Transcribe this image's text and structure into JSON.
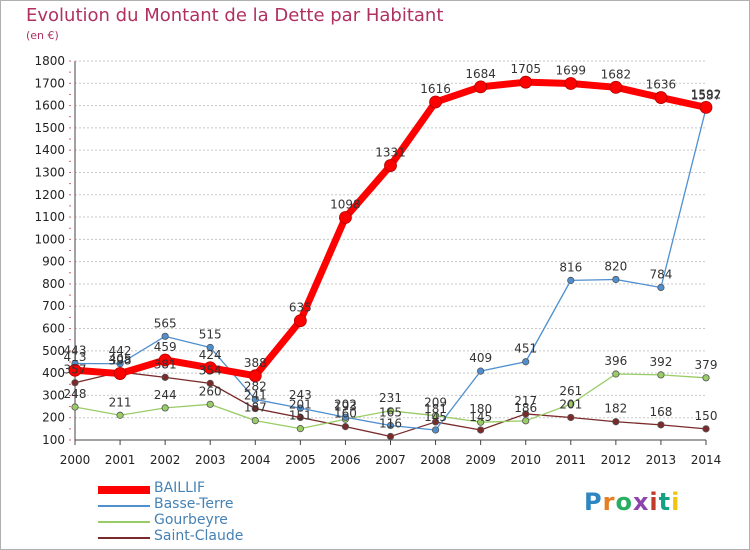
{
  "title": "Evolution du Montant de la Dette par Habitant",
  "subtitle": "(en €)",
  "logo_text": "Proxiti",
  "colors": {
    "title": "#b03060",
    "grid": "#c8c8c8",
    "axis_tick_text": "#222222",
    "legend_text": "#4682b4"
  },
  "chart_data": {
    "type": "line",
    "title": "Evolution du Montant de la Dette par Habitant",
    "subtitle": "(en €)",
    "xlabel": "",
    "ylabel": "",
    "x": [
      2000,
      2001,
      2002,
      2003,
      2004,
      2005,
      2006,
      2007,
      2008,
      2009,
      2010,
      2011,
      2012,
      2013,
      2014
    ],
    "ylim": [
      100,
      1800
    ],
    "yticks": [
      100,
      200,
      300,
      400,
      500,
      600,
      700,
      800,
      900,
      1000,
      1100,
      1200,
      1300,
      1400,
      1500,
      1600,
      1700,
      1800
    ],
    "grid": "horizontal",
    "legend_position": "bottom-left",
    "series": [
      {
        "name": "BAILLIF",
        "color": "#ff0000",
        "values": [
          413,
          398,
          459,
          424,
          388,
          635,
          1098,
          1331,
          1616,
          1684,
          1705,
          1699,
          1682,
          1636,
          1592
        ],
        "labels": [
          "413",
          "398",
          "459",
          "424",
          "388",
          "635",
          "1098",
          "1331",
          "1616",
          "1684",
          "1705",
          "1699",
          "1682",
          "1636",
          "1592"
        ]
      },
      {
        "name": "Basse-Terre",
        "color": "#4f8fcf",
        "values": [
          443,
          442,
          565,
          515,
          282,
          243,
          202,
          165,
          145,
          409,
          451,
          816,
          820,
          784,
          1587
        ],
        "labels": [
          "443",
          "442",
          "565",
          "515",
          "282",
          "243",
          "202",
          "165",
          "145",
          "409",
          "451",
          "816",
          "820",
          "784",
          "1587"
        ]
      },
      {
        "name": "Gourbeyre",
        "color": "#99cc66",
        "values": [
          248,
          211,
          244,
          260,
          187,
          151,
          193,
          231,
          209,
          180,
          186,
          261,
          396,
          392,
          379
        ],
        "labels": [
          "248",
          "211",
          "244",
          "260",
          "187",
          "151",
          "193",
          "231",
          "209",
          "180",
          "186",
          "261",
          "396",
          "392",
          "379"
        ]
      },
      {
        "name": "Saint-Claude",
        "color": "#7a2a2a",
        "values": [
          357,
          405,
          381,
          354,
          241,
          201,
          160,
          116,
          181,
          145,
          217,
          201,
          182,
          168,
          150
        ],
        "labels": [
          "357",
          "405",
          "381",
          "354",
          "241",
          "201",
          "160",
          "116",
          "181",
          "145",
          "217",
          "201",
          "182",
          "168",
          "150"
        ]
      }
    ]
  }
}
